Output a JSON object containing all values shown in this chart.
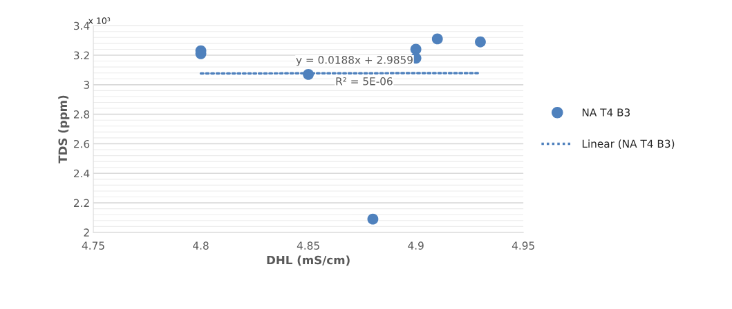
{
  "chart_data": {
    "type": "scatter",
    "xlabel": "DHL (mS/cm)",
    "ylabel": "TDS (ppm)",
    "series": [
      {
        "name": "NA T4 B3",
        "color": "#4f81bd",
        "marker": "circle",
        "x": [
          4.8,
          4.8,
          4.85,
          4.88,
          4.9,
          4.9,
          4.91,
          4.93
        ],
        "values": [
          3.23,
          3.21,
          3.07,
          2.09,
          3.24,
          3.18,
          3.31,
          3.29
        ]
      },
      {
        "name": "Linear (NA T4 B3)",
        "type": "line",
        "color": "#4f81bd",
        "line_style": "dotted",
        "marker": "none",
        "x": [
          4.8,
          4.93
        ],
        "values": [
          3.076,
          3.079
        ]
      }
    ],
    "xlim": [
      4.75,
      4.95
    ],
    "xticks": [
      4.75,
      4.8,
      4.85,
      4.9,
      4.95
    ],
    "ylim": [
      2,
      3.4
    ],
    "yticks": [
      2,
      2.2,
      2.4,
      2.6,
      2.8,
      3,
      3.2,
      3.4
    ],
    "grid": "y",
    "legend": "right",
    "annotations": [
      "x 10³",
      "y = 0.0188x + 2.9859",
      "R² = 5E-06"
    ]
  }
}
